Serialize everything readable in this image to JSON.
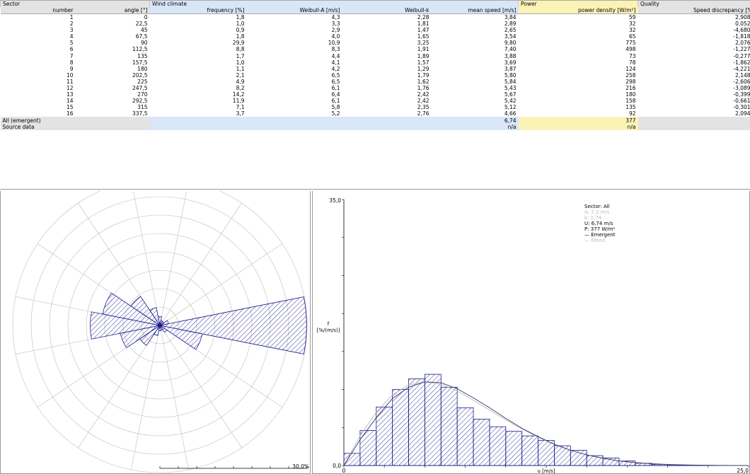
{
  "table": {
    "groups": {
      "sector": "Sector",
      "wind_climate": "Wind climate",
      "power": "Power",
      "quality": "Quality"
    },
    "columns": {
      "number": "number",
      "angle": "angle [°]",
      "frequency": "frequency [%]",
      "weibull_a": "Weibull-A [m/s]",
      "weibull_k": "Weibull-k",
      "mean_speed": "mean speed [m/s]",
      "power_density": "power density [W/m²]",
      "speed_discrepancy": "Speed discrepancy [%"
    },
    "rows": [
      {
        "number": "1",
        "angle": "0",
        "frequency": "1,8",
        "weibull_a": "4,3",
        "weibull_k": "2,28",
        "mean_speed": "3,84",
        "power_density": "59",
        "speed_discrepancy": "2,908⁹"
      },
      {
        "number": "2",
        "angle": "22,5",
        "frequency": "1,0",
        "weibull_a": "3,3",
        "weibull_k": "1,81",
        "mean_speed": "2,89",
        "power_density": "32",
        "speed_discrepancy": "0,052⁹"
      },
      {
        "number": "3",
        "angle": "45",
        "frequency": "0,9",
        "weibull_a": "2,9",
        "weibull_k": "1,47",
        "mean_speed": "2,65",
        "power_density": "32",
        "speed_discrepancy": "-4,680⁹"
      },
      {
        "number": "4",
        "angle": "67,5",
        "frequency": "1,8",
        "weibull_a": "4,0",
        "weibull_k": "1,65",
        "mean_speed": "3,54",
        "power_density": "65",
        "speed_discrepancy": "-1,818⁹"
      },
      {
        "number": "5",
        "angle": "90",
        "frequency": "29,9",
        "weibull_a": "10,9",
        "weibull_k": "3,25",
        "mean_speed": "9,80",
        "power_density": "775",
        "speed_discrepancy": "2,076⁹"
      },
      {
        "number": "6",
        "angle": "112,5",
        "frequency": "8,8",
        "weibull_a": "8,3",
        "weibull_k": "1,91",
        "mean_speed": "7,40",
        "power_density": "498",
        "speed_discrepancy": "-1,227⁹"
      },
      {
        "number": "7",
        "angle": "135",
        "frequency": "1,7",
        "weibull_a": "4,4",
        "weibull_k": "1,89",
        "mean_speed": "3,88",
        "power_density": "73",
        "speed_discrepancy": "-0,277⁹"
      },
      {
        "number": "8",
        "angle": "157,5",
        "frequency": "1,0",
        "weibull_a": "4,1",
        "weibull_k": "1,57",
        "mean_speed": "3,69",
        "power_density": "78",
        "speed_discrepancy": "-1,862⁹"
      },
      {
        "number": "9",
        "angle": "180",
        "frequency": "1,1",
        "weibull_a": "4,2",
        "weibull_k": "1,29",
        "mean_speed": "3,87",
        "power_density": "124",
        "speed_discrepancy": "-4,221⁹"
      },
      {
        "number": "10",
        "angle": "202,5",
        "frequency": "2,1",
        "weibull_a": "6,5",
        "weibull_k": "1,79",
        "mean_speed": "5,80",
        "power_density": "258",
        "speed_discrepancy": "2,148⁹"
      },
      {
        "number": "11",
        "angle": "225",
        "frequency": "4,9",
        "weibull_a": "6,5",
        "weibull_k": "1,62",
        "mean_speed": "5,84",
        "power_density": "298",
        "speed_discrepancy": "-2,606⁹"
      },
      {
        "number": "12",
        "angle": "247,5",
        "frequency": "8,2",
        "weibull_a": "6,1",
        "weibull_k": "1,76",
        "mean_speed": "5,43",
        "power_density": "216",
        "speed_discrepancy": "-3,089⁹"
      },
      {
        "number": "13",
        "angle": "270",
        "frequency": "14,2",
        "weibull_a": "6,4",
        "weibull_k": "2,42",
        "mean_speed": "5,67",
        "power_density": "180",
        "speed_discrepancy": "-0,399⁹"
      },
      {
        "number": "14",
        "angle": "292,5",
        "frequency": "11,9",
        "weibull_a": "6,1",
        "weibull_k": "2,42",
        "mean_speed": "5,42",
        "power_density": "158",
        "speed_discrepancy": "-0,661⁹"
      },
      {
        "number": "15",
        "angle": "315",
        "frequency": "7,1",
        "weibull_a": "5,8",
        "weibull_k": "2,35",
        "mean_speed": "5,12",
        "power_density": "135",
        "speed_discrepancy": "-0,301⁹"
      },
      {
        "number": "16",
        "angle": "337,5",
        "frequency": "3,7",
        "weibull_a": "5,2",
        "weibull_k": "2,76",
        "mean_speed": "4,66",
        "power_density": "92",
        "speed_discrepancy": "2,094⁹"
      }
    ],
    "summary_rows": [
      {
        "label": "All (emergent)",
        "mean_speed": "6,74",
        "power_density": "377"
      },
      {
        "label": "Source data",
        "mean_speed": "n/a",
        "power_density": "n/a"
      }
    ]
  },
  "colors": {
    "hatch": "#1a1a8c",
    "blue_header": "#d9e6f8",
    "yellow_header": "#fbf3b6",
    "grey_header": "#e3e3e3",
    "grid": "#bdbdbd"
  },
  "rose": {
    "scale_label": "30,0%"
  },
  "histogram": {
    "legend": {
      "sector": "Sector: All",
      "a": "A: 7,3 m/s",
      "k": "k: 1,74",
      "u": "U: 6,74 m/s",
      "p": "P: 377 W/m²",
      "emergent": "— Emergent",
      "fitted": "— Fitted"
    }
  },
  "chart_data": [
    {
      "type": "rose",
      "sectors": [
        0,
        22.5,
        45,
        67.5,
        90,
        112.5,
        135,
        157.5,
        180,
        202.5,
        225,
        247.5,
        270,
        292.5,
        315,
        337.5
      ],
      "values": [
        1.8,
        1.0,
        0.9,
        1.8,
        29.9,
        8.8,
        1.7,
        1.0,
        1.1,
        2.1,
        4.9,
        8.2,
        14.2,
        11.9,
        7.1,
        3.7
      ],
      "rmax": 30,
      "rings": 8,
      "grid": true
    },
    {
      "type": "bar",
      "xlabel": "u [m/s]",
      "ylabel": "f\n[%/(m/s)]",
      "xlim": [
        0,
        25
      ],
      "ylim": [
        0,
        35
      ],
      "x_ticks": [
        "0",
        "25,0"
      ],
      "y_ticks": [
        "0,0",
        "35,0"
      ],
      "bin_edges": [
        0,
        1,
        2,
        3,
        4,
        5,
        6,
        7,
        8,
        9,
        10,
        11,
        12,
        13,
        14,
        15,
        16,
        17,
        18,
        19,
        20,
        21,
        22,
        23,
        24,
        25
      ],
      "values": [
        1.6,
        4.6,
        7.7,
        10.0,
        11.4,
        12.0,
        10.3,
        7.6,
        6.1,
        5.1,
        4.5,
        3.9,
        3.3,
        2.6,
        2.0,
        1.3,
        1.0,
        0.6,
        0.3,
        0.15,
        0.1,
        0.05,
        0.02,
        0.01,
        0.0
      ],
      "emergent_curve": [
        [
          0,
          0
        ],
        [
          1,
          3.4
        ],
        [
          2,
          6.3
        ],
        [
          3,
          8.8
        ],
        [
          4,
          10.3
        ],
        [
          5,
          11.0
        ],
        [
          6,
          10.9
        ],
        [
          7,
          10.1
        ],
        [
          8,
          8.9
        ],
        [
          9,
          7.6
        ],
        [
          10,
          6.2
        ],
        [
          11,
          4.9
        ],
        [
          12,
          3.8
        ],
        [
          13,
          2.8
        ],
        [
          14,
          2.0
        ],
        [
          15,
          1.4
        ],
        [
          16,
          0.95
        ],
        [
          17,
          0.6
        ],
        [
          18,
          0.38
        ],
        [
          19,
          0.23
        ],
        [
          20,
          0.13
        ],
        [
          21,
          0.07
        ],
        [
          22,
          0.04
        ],
        [
          23,
          0.02
        ],
        [
          24,
          0.01
        ],
        [
          25,
          0
        ]
      ],
      "fitted_curve": [
        [
          0,
          0
        ],
        [
          1,
          3.9
        ],
        [
          2,
          7.0
        ],
        [
          3,
          9.3
        ],
        [
          4,
          10.6
        ],
        [
          5,
          11.0
        ],
        [
          6,
          10.7
        ],
        [
          7,
          9.8
        ],
        [
          8,
          8.6
        ],
        [
          9,
          7.3
        ],
        [
          10,
          6.0
        ],
        [
          11,
          4.8
        ],
        [
          12,
          3.7
        ],
        [
          13,
          2.8
        ],
        [
          14,
          2.0
        ],
        [
          15,
          1.4
        ],
        [
          16,
          0.95
        ],
        [
          17,
          0.62
        ],
        [
          18,
          0.39
        ],
        [
          19,
          0.24
        ],
        [
          20,
          0.14
        ],
        [
          21,
          0.08
        ],
        [
          22,
          0.05
        ],
        [
          23,
          0.02
        ],
        [
          24,
          0.01
        ],
        [
          25,
          0
        ]
      ]
    }
  ]
}
